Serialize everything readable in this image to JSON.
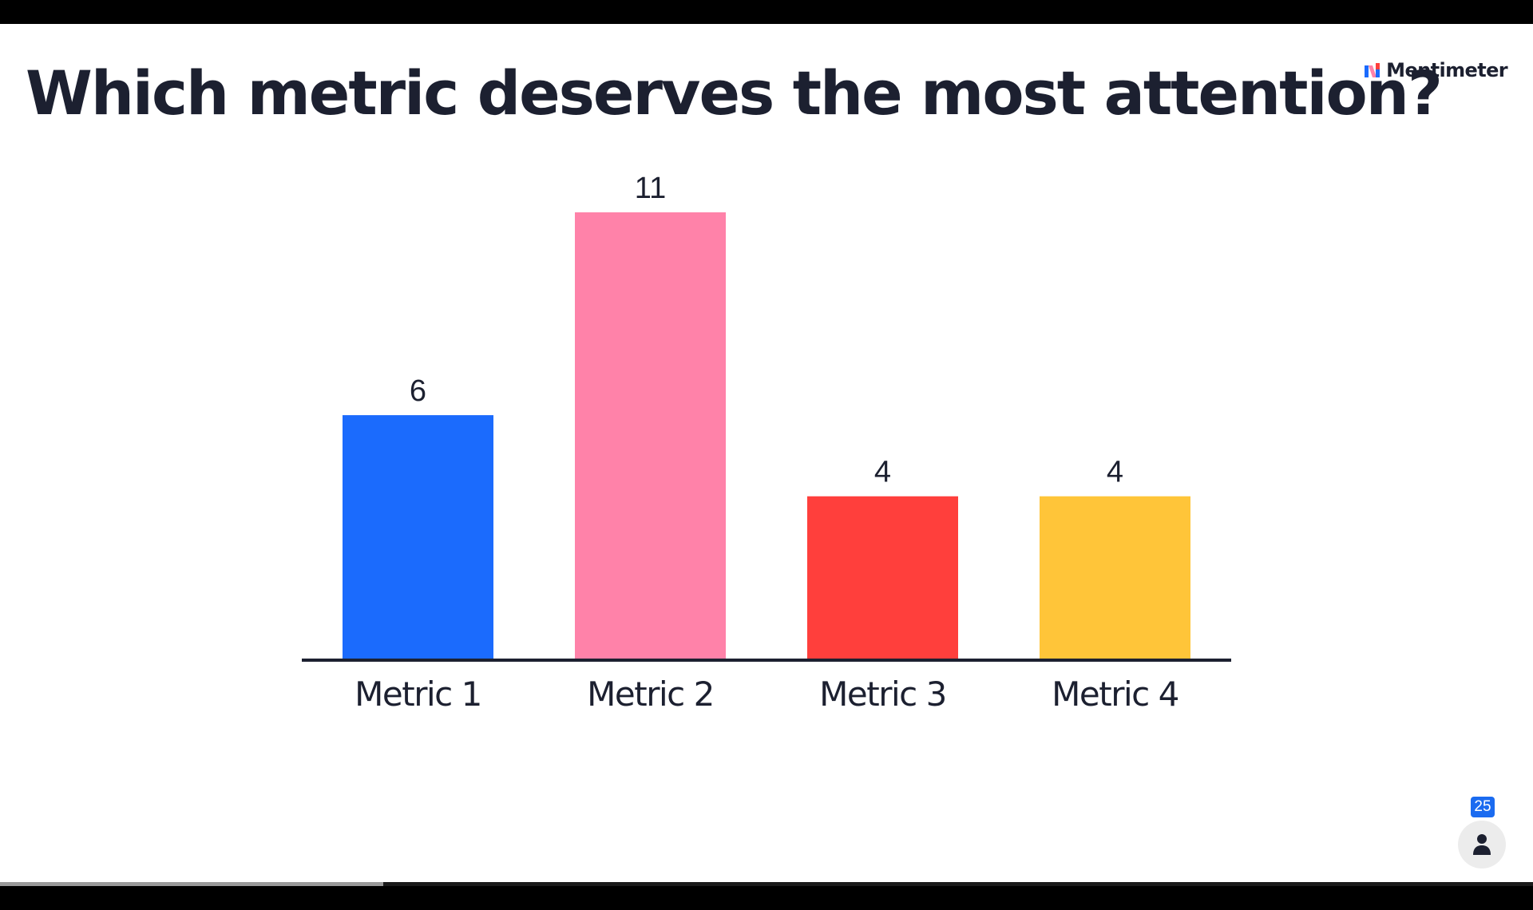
{
  "slide": {
    "title": "Which metric deserves the most attention?",
    "brand": "Mentimeter",
    "participant_count": "25",
    "progress": 0.25
  },
  "icons": {
    "brand_logo": "mentimeter-logo-icon",
    "participants": "person-icon"
  },
  "chart_data": {
    "type": "bar",
    "title": "",
    "xlabel": "",
    "ylabel": "",
    "categories": [
      "Metric 1",
      "Metric 2",
      "Metric 3",
      "Metric 4"
    ],
    "values": [
      6,
      11,
      4,
      4
    ],
    "colors": [
      "#1b6bfd",
      "#ff82a9",
      "#ff3f3c",
      "#ffc539"
    ],
    "ylim": [
      0,
      11
    ],
    "grid": false,
    "data_labels": true,
    "baseline_color": "#1c2030",
    "text_color": "#1c2030"
  }
}
